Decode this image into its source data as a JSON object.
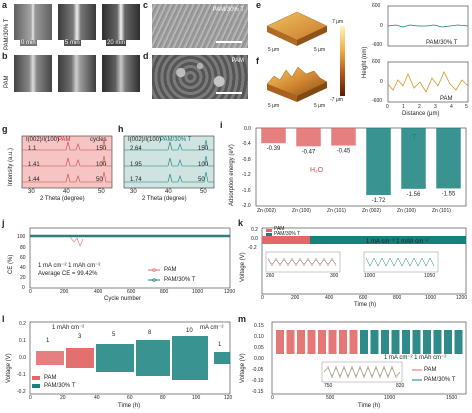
{
  "panels": {
    "a": "a",
    "b": "b",
    "c": "c",
    "d": "d",
    "e": "e",
    "f": "f",
    "g": "g",
    "h": "h",
    "i": "i",
    "j": "j",
    "k": "k",
    "l": "l",
    "m": "m"
  },
  "row_a_label": "PAM/30% T",
  "row_b_label": "PAM",
  "times": [
    "0 min",
    "5 min",
    "20 min"
  ],
  "sem_c_label": "PAM/30% T",
  "sem_d_label": "PAM",
  "afm": {
    "dim": "5 μm",
    "top": "7 μm",
    "bottom": "-7 μm",
    "ylabel": "Height (nm)",
    "xlabel": "Distance (μm)",
    "e_label": "PAM/30% T",
    "f_label": "PAM",
    "yticks": [
      "-600",
      "0",
      "600"
    ],
    "xticks": [
      "0",
      "1",
      "2",
      "3",
      "4",
      "5"
    ]
  },
  "chart_data": [
    {
      "id": "g",
      "type": "line",
      "header_ratio": "I(002)/I(100)",
      "header_cycles": "cycles",
      "series_label": "PAM",
      "rows": [
        {
          "ratio": "1.1",
          "cycles": "150"
        },
        {
          "ratio": "1.41",
          "cycles": "100"
        },
        {
          "ratio": "1.44",
          "cycles": "50"
        }
      ],
      "xlabel": "2 Theta (degree)",
      "ylabel": "Intensity (a.u.)",
      "xticks": [
        "30",
        "40",
        "50"
      ]
    },
    {
      "id": "h",
      "type": "line",
      "header_ratio": "I(002)/I(100)",
      "series_label": "PAM/30% T",
      "rows": [
        {
          "ratio": "2.64",
          "cycles": "150"
        },
        {
          "ratio": "1.95",
          "cycles": "100"
        },
        {
          "ratio": "1.74",
          "cycles": "50"
        }
      ],
      "xlabel": "2 Theta (degree)",
      "xticks": [
        "30",
        "40",
        "50"
      ]
    },
    {
      "id": "i",
      "type": "bar",
      "ylabel": "Adsorption energy (eV)",
      "yticks": [
        "0.0",
        "-0.4",
        "-0.8",
        "-1.2",
        "-1.6",
        "-2.0"
      ],
      "ylim": [
        -2.0,
        0.0
      ],
      "group_labels": [
        "H₂O",
        "T"
      ],
      "categories": [
        "Zn (002)",
        "Zn (100)",
        "Zn (101)",
        "Zn (002)",
        "Zn (100)",
        "Zn (101)"
      ],
      "values": [
        -0.39,
        -0.47,
        -0.45,
        -1.72,
        -1.56,
        -1.55
      ],
      "value_labels": [
        "-0.39",
        "-0.47",
        "-0.45",
        "-1.72",
        "-1.56",
        "-1.55"
      ]
    },
    {
      "id": "j",
      "type": "scatter",
      "ylabel": "CE (%)",
      "xlabel": "Cycle number",
      "yticks": [
        "0",
        "20",
        "40",
        "60",
        "80",
        "100"
      ],
      "xticks": [
        "0",
        "200",
        "400",
        "600",
        "800",
        "1000",
        "1200"
      ],
      "condition": "1 mA cm⁻² 1 mAh cm⁻²",
      "avg": "Average CE = 99.42%",
      "legend": [
        "PAM",
        "PAM/30% T"
      ]
    },
    {
      "id": "k",
      "type": "line",
      "ylabel": "Voltage (V)",
      "xlabel": "Time (h)",
      "yticks": [
        "-0.2",
        "0.0",
        "0.2"
      ],
      "xticks": [
        "0",
        "200",
        "400",
        "600",
        "800",
        "1000",
        "1200"
      ],
      "condition": "1 mA cm⁻² 1 mAh cm⁻²",
      "legend": [
        "PAM",
        "PAM/30% T"
      ],
      "inset1": [
        "260",
        "300"
      ],
      "inset2": [
        "1000",
        "1050"
      ]
    },
    {
      "id": "l",
      "type": "line",
      "ylabel": "Voltage (V)",
      "xlabel": "Time (h)",
      "yticks": [
        "-0.2",
        "-0.1",
        "0.0",
        "0.1",
        "0.2"
      ],
      "xticks": [
        "0",
        "20",
        "40",
        "60",
        "80",
        "100",
        "120"
      ],
      "cap_label": "1 mAh cm⁻²",
      "unit_label": "mA cm⁻²",
      "rates": [
        "1",
        "3",
        "5",
        "8",
        "10",
        "1"
      ],
      "legend": [
        "PAM",
        "PAM/30% T"
      ]
    },
    {
      "id": "m",
      "type": "line",
      "ylabel": "Voltage (V)",
      "xlabel": "Time (h)",
      "yticks": [
        "-0.15",
        "-0.10",
        "-0.05",
        "0.00",
        "0.05",
        "0.10",
        "0.15"
      ],
      "xticks": [
        "0",
        "500",
        "1000",
        "1500"
      ],
      "condition": "1 mA cm⁻² 1 mAh cm⁻²",
      "legend": [
        "PAM",
        "PAM/30% T"
      ],
      "inset": [
        "750",
        "820"
      ]
    }
  ],
  "colors": {
    "pam": "#e26868",
    "t": "#16807d",
    "pink_bg": "#f7c4c4",
    "teal_bg": "#cfe3e0",
    "green": "#2aa55c"
  }
}
